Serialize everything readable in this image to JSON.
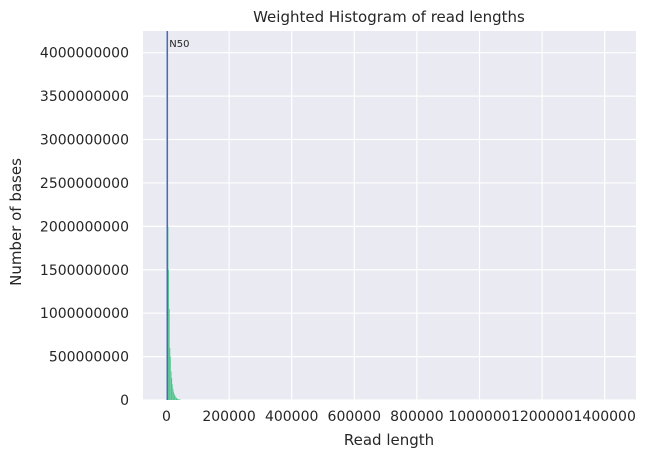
{
  "chart_data": {
    "type": "bar",
    "title": "Weighted Histogram of read lengths",
    "xlabel": "Read length",
    "ylabel": "Number of bases",
    "xlim": [
      -75000,
      1500000
    ],
    "ylim": [
      0,
      4250000000
    ],
    "xticks": [
      0,
      200000,
      400000,
      600000,
      800000,
      1000000,
      1200000,
      1400000
    ],
    "xtick_labels": [
      "0",
      "200000",
      "400000",
      "600000",
      "800000",
      "1000000",
      "1200000",
      "1400000"
    ],
    "yticks": [
      0,
      500000000,
      1000000000,
      1500000000,
      2000000000,
      2500000000,
      3000000000,
      3500000000,
      4000000000
    ],
    "ytick_labels": [
      "0",
      "500000000",
      "1000000000",
      "1500000000",
      "2000000000",
      "2500000000",
      "3000000000",
      "3500000000",
      "4000000000"
    ],
    "grid": true,
    "background": "#eaeaf2",
    "bar_color": "#4cc28a",
    "bars": [
      {
        "x": 1000,
        "y": 4200000000
      },
      {
        "x": 3000,
        "y": 2600000000
      },
      {
        "x": 5000,
        "y": 2000000000
      },
      {
        "x": 7000,
        "y": 1500000000
      },
      {
        "x": 9000,
        "y": 1050000000
      },
      {
        "x": 11000,
        "y": 600000000
      },
      {
        "x": 13000,
        "y": 500000000
      },
      {
        "x": 15000,
        "y": 330000000
      },
      {
        "x": 17000,
        "y": 250000000
      },
      {
        "x": 19000,
        "y": 180000000
      },
      {
        "x": 21000,
        "y": 130000000
      },
      {
        "x": 23000,
        "y": 95000000
      },
      {
        "x": 25000,
        "y": 70000000
      },
      {
        "x": 27000,
        "y": 52000000
      },
      {
        "x": 29000,
        "y": 38000000
      },
      {
        "x": 31000,
        "y": 28000000
      },
      {
        "x": 33000,
        "y": 20000000
      },
      {
        "x": 35000,
        "y": 15000000
      },
      {
        "x": 37000,
        "y": 11000000
      },
      {
        "x": 39000,
        "y": 8000000
      },
      {
        "x": 41000,
        "y": 6000000
      },
      {
        "x": 43000,
        "y": 4000000
      },
      {
        "x": 45000,
        "y": 3000000
      }
    ],
    "bin_width": 2000,
    "vline": {
      "x": 2500,
      "label": "N50",
      "color": "#4a6bb5"
    }
  }
}
